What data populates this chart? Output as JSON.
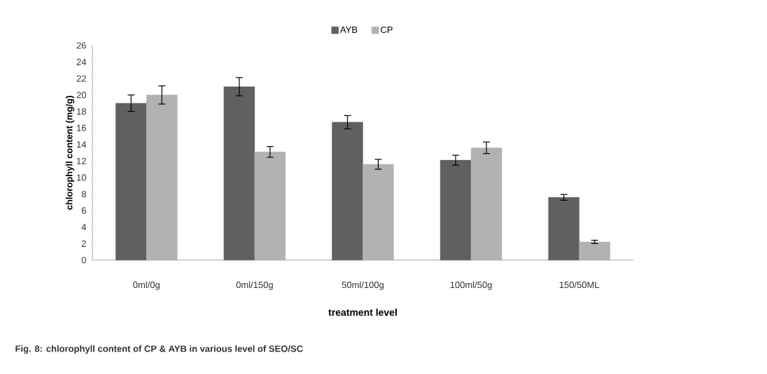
{
  "chart_data": {
    "type": "bar",
    "xlabel": "treatment level",
    "ylabel": "chlorophyll content (mg/g)",
    "categories": [
      "0ml/0g",
      "0ml/150g",
      "50ml/100g",
      "100ml/50g",
      "150/50ML"
    ],
    "series": [
      {
        "name": "AYB",
        "color": "#606060",
        "values": [
          19.0,
          21.0,
          16.7,
          12.1,
          7.6
        ],
        "errors": [
          1.0,
          1.1,
          0.8,
          0.6,
          0.35
        ]
      },
      {
        "name": "CP",
        "color": "#b2b2b2",
        "values": [
          20.0,
          13.1,
          11.6,
          13.6,
          2.2
        ],
        "errors": [
          1.1,
          0.65,
          0.6,
          0.7,
          0.2
        ]
      }
    ],
    "ylim": [
      0,
      26
    ],
    "yticks": [
      0,
      2,
      4,
      6,
      8,
      10,
      12,
      14,
      16,
      18,
      20,
      22,
      24,
      26
    ],
    "grid": false,
    "legend": "top",
    "annotations": [
      "Fig. 8: chlorophyll  content of CP & AYB in various level of SEO/SC"
    ]
  }
}
